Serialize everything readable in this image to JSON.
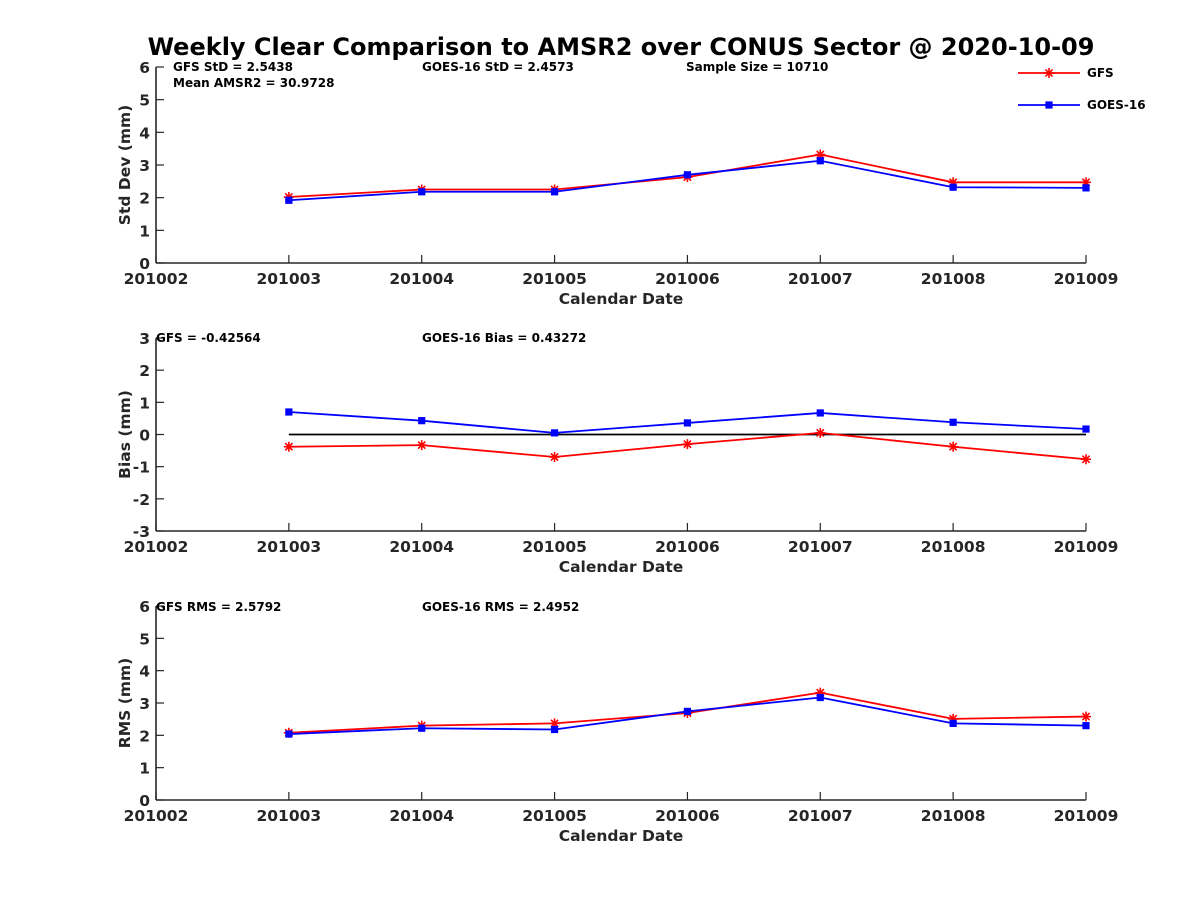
{
  "chart_data": [
    {
      "type": "line",
      "title": "Weekly Clear Comparison to AMSR2 over CONUS Sector @ 2020-10-09",
      "xlabel": "Calendar Date",
      "ylabel": "Std Dev (mm)",
      "ylim": [
        0,
        6
      ],
      "yticks": [
        "0",
        "1",
        "2",
        "3",
        "4",
        "5",
        "6"
      ],
      "categories": [
        "201002",
        "201003",
        "201004",
        "201005",
        "201006",
        "201007",
        "201008",
        "201009"
      ],
      "annotations": [
        "GFS StD = 2.5438",
        "Mean AMSR2 = 30.9728",
        "GOES-16 StD = 2.4573",
        "Sample Size = 10710"
      ],
      "series": [
        {
          "name": "GFS",
          "color": "#ff0000",
          "marker": "asterisk",
          "values": [
            null,
            2.02,
            2.25,
            2.25,
            2.63,
            3.32,
            2.47,
            2.47
          ]
        },
        {
          "name": "GOES-16",
          "color": "#0000ff",
          "marker": "square",
          "values": [
            null,
            1.92,
            2.18,
            2.18,
            2.7,
            3.13,
            2.32,
            2.3
          ]
        }
      ],
      "legend": {
        "position": "top-right",
        "entries": [
          "GFS",
          "GOES-16"
        ]
      }
    },
    {
      "type": "line",
      "xlabel": "Calendar Date",
      "ylabel": "Bias (mm)",
      "ylim": [
        -3,
        3
      ],
      "yticks": [
        "-3",
        "-2",
        "-1",
        "0",
        "1",
        "2",
        "3"
      ],
      "categories": [
        "201002",
        "201003",
        "201004",
        "201005",
        "201006",
        "201007",
        "201008",
        "201009"
      ],
      "annotations": [
        "GFS = -0.42564",
        "GOES-16 Bias  = 0.43272"
      ],
      "zero_line": true,
      "series": [
        {
          "name": "GFS",
          "color": "#ff0000",
          "marker": "asterisk",
          "values": [
            null,
            -0.38,
            -0.33,
            -0.7,
            -0.3,
            0.05,
            -0.38,
            -0.77
          ]
        },
        {
          "name": "GOES-16",
          "color": "#0000ff",
          "marker": "square",
          "values": [
            null,
            0.7,
            0.43,
            0.05,
            0.36,
            0.67,
            0.38,
            0.17
          ]
        }
      ]
    },
    {
      "type": "line",
      "xlabel": "Calendar Date",
      "ylabel": "RMS (mm)",
      "ylim": [
        0,
        6
      ],
      "yticks": [
        "0",
        "1",
        "2",
        "3",
        "4",
        "5",
        "6"
      ],
      "categories": [
        "201002",
        "201003",
        "201004",
        "201005",
        "201006",
        "201007",
        "201008",
        "201009"
      ],
      "annotations": [
        "GFS RMS = 2.5792",
        "GOES-16 RMS = 2.4952"
      ],
      "series": [
        {
          "name": "GFS",
          "color": "#ff0000",
          "marker": "asterisk",
          "values": [
            null,
            2.08,
            2.3,
            2.37,
            2.69,
            3.32,
            2.51,
            2.58
          ]
        },
        {
          "name": "GOES-16",
          "color": "#0000ff",
          "marker": "square",
          "values": [
            null,
            2.04,
            2.22,
            2.18,
            2.74,
            3.17,
            2.37,
            2.3
          ]
        }
      ]
    }
  ]
}
